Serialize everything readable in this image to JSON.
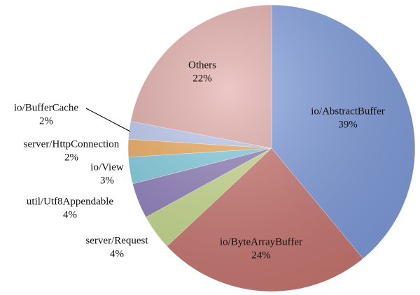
{
  "chart_data": {
    "type": "pie",
    "categories": [
      "io/AbstractBuffer",
      "io/ByteArrayBuffer",
      "server/Request",
      "util/Utf8Appendable",
      "io/View",
      "server/HttpConnection",
      "io/BufferCache",
      "Others"
    ],
    "values": [
      39,
      24,
      4,
      4,
      3,
      2,
      2,
      22
    ],
    "value_labels": [
      "39%",
      "24%",
      "4%",
      "4%",
      "3%",
      "2%",
      "2%",
      "22%"
    ],
    "colors": [
      "#7f9ee0",
      "#cd7670",
      "#c9de8c",
      "#8f7dbd",
      "#7fcfe3",
      "#f2aa55",
      "#b9c9f2",
      "#e3aaa6"
    ]
  }
}
